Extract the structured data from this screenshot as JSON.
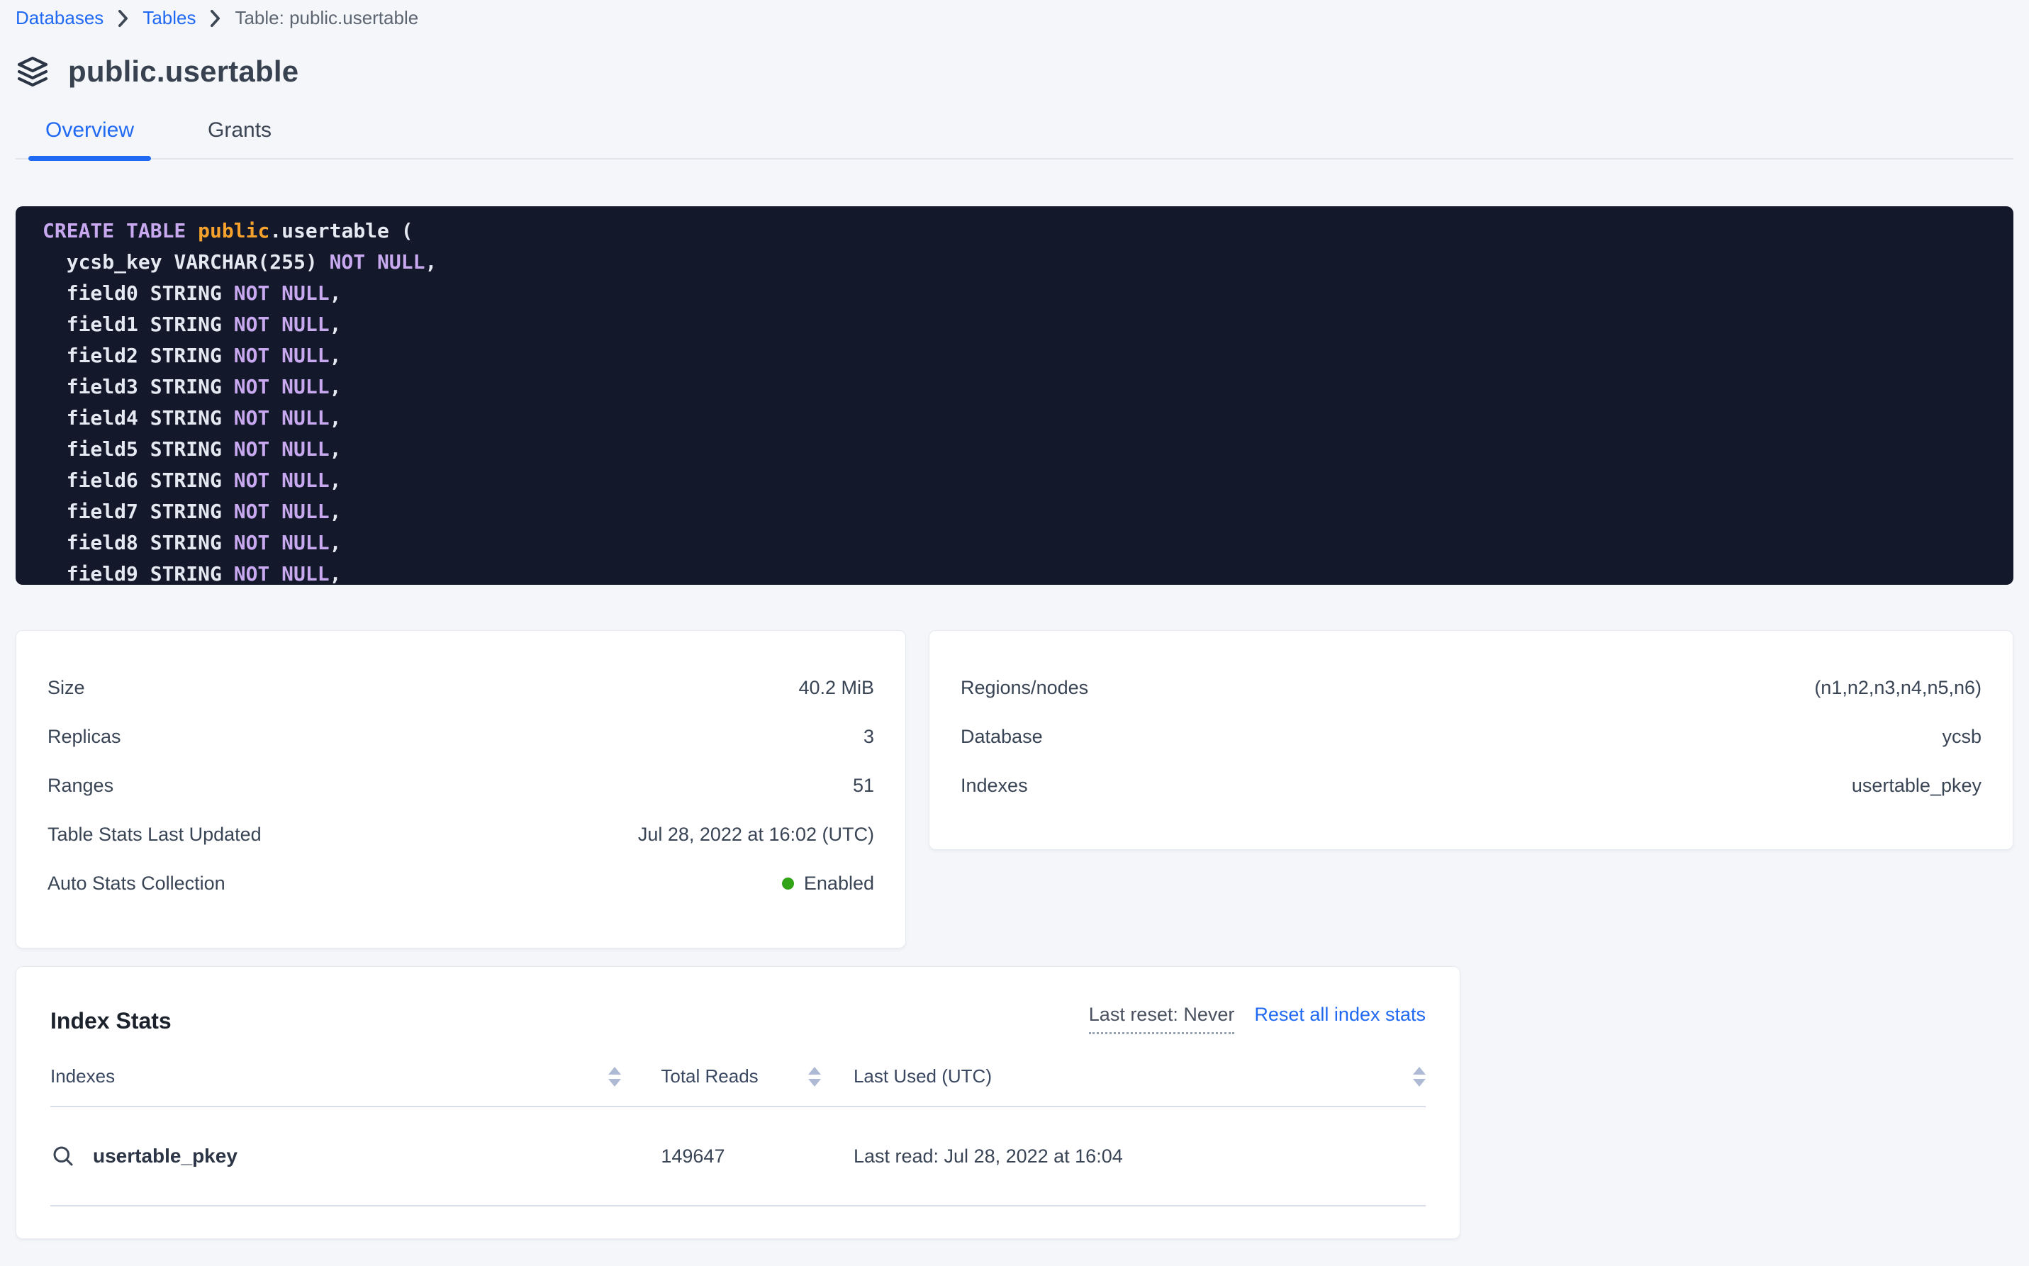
{
  "breadcrumb": {
    "databases": "Databases",
    "tables": "Tables",
    "current": "Table: public.usertable"
  },
  "header": {
    "title": "public.usertable",
    "icon": "layers-icon"
  },
  "tabs": [
    {
      "label": "Overview",
      "active": true
    },
    {
      "label": "Grants",
      "active": false
    }
  ],
  "sql": {
    "lines": [
      {
        "parts": [
          {
            "text": "CREATE TABLE ",
            "style": "keyword"
          },
          {
            "text": "public",
            "style": "schema"
          },
          {
            "text": ".usertable (",
            "style": "plain"
          }
        ]
      },
      {
        "parts": [
          {
            "text": "  ycsb_key VARCHAR(255) ",
            "style": "plain"
          },
          {
            "text": "NOT NULL",
            "style": "keyword"
          },
          {
            "text": ",",
            "style": "plain"
          }
        ]
      },
      {
        "parts": [
          {
            "text": "  field0 STRING ",
            "style": "plain"
          },
          {
            "text": "NOT NULL",
            "style": "keyword"
          },
          {
            "text": ",",
            "style": "plain"
          }
        ]
      },
      {
        "parts": [
          {
            "text": "  field1 STRING ",
            "style": "plain"
          },
          {
            "text": "NOT NULL",
            "style": "keyword"
          },
          {
            "text": ",",
            "style": "plain"
          }
        ]
      },
      {
        "parts": [
          {
            "text": "  field2 STRING ",
            "style": "plain"
          },
          {
            "text": "NOT NULL",
            "style": "keyword"
          },
          {
            "text": ",",
            "style": "plain"
          }
        ]
      },
      {
        "parts": [
          {
            "text": "  field3 STRING ",
            "style": "plain"
          },
          {
            "text": "NOT NULL",
            "style": "keyword"
          },
          {
            "text": ",",
            "style": "plain"
          }
        ]
      },
      {
        "parts": [
          {
            "text": "  field4 STRING ",
            "style": "plain"
          },
          {
            "text": "NOT NULL",
            "style": "keyword"
          },
          {
            "text": ",",
            "style": "plain"
          }
        ]
      },
      {
        "parts": [
          {
            "text": "  field5 STRING ",
            "style": "plain"
          },
          {
            "text": "NOT NULL",
            "style": "keyword"
          },
          {
            "text": ",",
            "style": "plain"
          }
        ]
      },
      {
        "parts": [
          {
            "text": "  field6 STRING ",
            "style": "plain"
          },
          {
            "text": "NOT NULL",
            "style": "keyword"
          },
          {
            "text": ",",
            "style": "plain"
          }
        ]
      },
      {
        "parts": [
          {
            "text": "  field7 STRING ",
            "style": "plain"
          },
          {
            "text": "NOT NULL",
            "style": "keyword"
          },
          {
            "text": ",",
            "style": "plain"
          }
        ]
      },
      {
        "parts": [
          {
            "text": "  field8 STRING ",
            "style": "plain"
          },
          {
            "text": "NOT NULL",
            "style": "keyword"
          },
          {
            "text": ",",
            "style": "plain"
          }
        ]
      },
      {
        "parts": [
          {
            "text": "  field9 STRING ",
            "style": "plain"
          },
          {
            "text": "NOT NULL",
            "style": "keyword"
          },
          {
            "text": ",",
            "style": "plain"
          }
        ]
      }
    ]
  },
  "details_left": {
    "rows": [
      {
        "label": "Size",
        "value": "40.2 MiB"
      },
      {
        "label": "Replicas",
        "value": "3"
      },
      {
        "label": "Ranges",
        "value": "51"
      },
      {
        "label": "Table Stats Last Updated",
        "value": "Jul 28, 2022 at 16:02 (UTC)"
      },
      {
        "label": "Auto Stats Collection",
        "value": "Enabled",
        "status": "enabled"
      }
    ]
  },
  "details_right": {
    "rows": [
      {
        "label": "Regions/nodes",
        "value": "(n1,n2,n3,n4,n5,n6)"
      },
      {
        "label": "Database",
        "value": "ycsb"
      },
      {
        "label": "Indexes",
        "value": "usertable_pkey"
      }
    ]
  },
  "index_stats": {
    "title": "Index Stats",
    "last_reset": "Last reset: Never",
    "reset_link": "Reset all index stats",
    "columns": [
      "Indexes",
      "Total Reads",
      "Last Used (UTC)"
    ],
    "rows": [
      {
        "index_name": "usertable_pkey",
        "total_reads": "149647",
        "last_used": "Last read: Jul 28, 2022 at 16:04"
      }
    ]
  },
  "icons": {
    "title": "layers-icon",
    "breadcrumb_separator": "chevron-right-icon",
    "row": "magnifier-icon",
    "sort": "sort-carets-icon",
    "status": "green-dot"
  },
  "colors": {
    "page_background": "#F4F6FA",
    "accent_blue": "#2069F2",
    "code_background": "#13192B",
    "code_keyword": "#C8A9F0",
    "code_schema_orange": "#F6A22D",
    "code_plain": "#E5E9F2",
    "status_green": "#31A317",
    "sort_arrow": "#AEBAD4",
    "text_primary": "#394455"
  }
}
